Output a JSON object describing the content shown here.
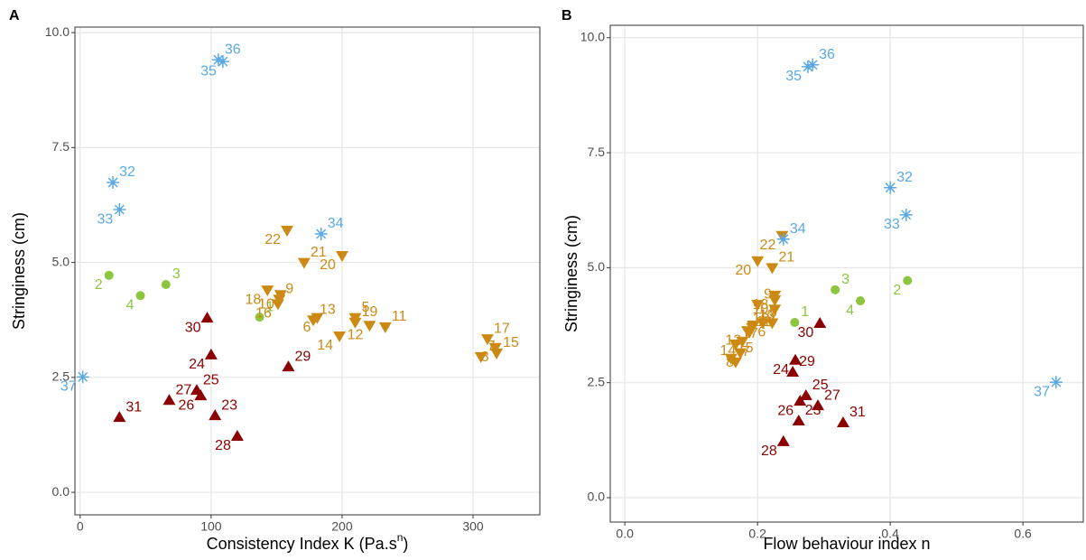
{
  "chart_data": [
    {
      "type": "scatter",
      "panel": "A",
      "ylabel": "Stringiness (cm)",
      "xlabel": "Consistency Index K (Pa.s",
      "xlabel_superscript": "n",
      "xlabel_suffix": ")",
      "xlim": [
        -4,
        351
      ],
      "ylim": [
        -0.49,
        10.12
      ],
      "xticks": [
        0,
        100,
        200,
        300
      ],
      "yticks": [
        {
          "value": 0,
          "label": "0.0"
        },
        {
          "value": 2.5,
          "label": "2.5"
        },
        {
          "value": 5,
          "label": "5.0"
        },
        {
          "value": 7.5,
          "label": "7.5"
        },
        {
          "value": 10,
          "label": "10.0"
        }
      ],
      "grid": true,
      "series": [
        {
          "color": "#8cc63f",
          "marker": "circle",
          "labels": [
            "1",
            "2",
            "3",
            "4"
          ],
          "x": [
            137,
            22,
            65.5,
            46
          ],
          "y": [
            3.81,
            4.72,
            4.52,
            4.28
          ]
        },
        {
          "color": "#cc8a14",
          "marker": "triangle-down",
          "labels": [
            "5",
            "6",
            "7",
            "8",
            "9",
            "10",
            "11",
            "12",
            "13",
            "14",
            "15",
            "16",
            "17",
            "18",
            "19",
            "20",
            "21",
            "22"
          ],
          "x": [
            210,
            181,
            306,
            317,
            152,
            153,
            233,
            221,
            178,
            198,
            318,
            151,
            311,
            143,
            210,
            200,
            171,
            158
          ],
          "y": [
            3.8,
            3.8,
            2.95,
            3.15,
            4.2,
            4.3,
            3.6,
            3.63,
            3.75,
            3.4,
            3.03,
            4.1,
            3.34,
            4.4,
            3.7,
            5.15,
            5.0,
            5.7
          ]
        },
        {
          "color": "#8b0000",
          "marker": "triangle-up",
          "labels": [
            "23",
            "24",
            "25",
            "26",
            "27",
            "28",
            "29",
            "30",
            "31"
          ],
          "x": [
            103,
            100,
            89,
            92,
            68,
            120,
            159,
            97,
            30
          ],
          "y": [
            1.67,
            2.99,
            2.22,
            2.1,
            2.0,
            1.22,
            2.73,
            3.79,
            1.63
          ]
        },
        {
          "color": "#5aa9e6",
          "marker": "asterisk",
          "labels": [
            "32",
            "33",
            "34",
            "35",
            "36",
            "37"
          ],
          "x": [
            25,
            30,
            184,
            109,
            105.5,
            2
          ],
          "y": [
            6.74,
            6.15,
            5.62,
            9.37,
            9.41,
            2.51
          ]
        }
      ]
    },
    {
      "type": "scatter",
      "panel": "B",
      "ylabel": "Stringiness (cm)",
      "xlabel": "Flow behaviour index n",
      "xlim": [
        -0.022,
        0.691
      ],
      "ylim": [
        -0.53,
        10.27
      ],
      "xticks": [
        {
          "value": 0,
          "label": "0.0"
        },
        {
          "value": 0.2,
          "label": "0.2"
        },
        {
          "value": 0.4,
          "label": "0.4"
        },
        {
          "value": 0.6,
          "label": "0.6"
        }
      ],
      "yticks": [
        {
          "value": 0,
          "label": "0.0"
        },
        {
          "value": 2.5,
          "label": "2.5"
        },
        {
          "value": 5,
          "label": "5.0"
        },
        {
          "value": 7.5,
          "label": "7.5"
        },
        {
          "value": 10,
          "label": "10.0"
        }
      ],
      "grid": true,
      "series": [
        {
          "color": "#8cc63f",
          "marker": "circle",
          "labels": [
            "1",
            "2",
            "3",
            "4"
          ],
          "x": [
            0.256,
            0.426,
            0.317,
            0.355
          ],
          "y": [
            3.81,
            4.72,
            4.52,
            4.28
          ]
        },
        {
          "color": "#cc8a14",
          "marker": "triangle-down",
          "labels": [
            "5",
            "6",
            "7",
            "8",
            "9",
            "10",
            "11",
            "12",
            "13",
            "14",
            "15",
            "16",
            "17",
            "18",
            "19",
            "20",
            "21",
            "22"
          ],
          "x": [
            0.208,
            0.222,
            0.167,
            0.174,
            0.2,
            0.226,
            0.188,
            0.185,
            0.193,
            0.177,
            0.16,
            0.226,
            0.167,
            0.226,
            0.192,
            0.2,
            0.222,
            0.237
          ],
          "y": [
            3.8,
            3.8,
            2.95,
            3.15,
            4.2,
            4.3,
            3.6,
            3.63,
            3.75,
            3.4,
            3.03,
            4.1,
            3.34,
            4.4,
            3.7,
            5.15,
            5.0,
            5.7
          ]
        },
        {
          "color": "#8b0000",
          "marker": "triangle-up",
          "labels": [
            "23",
            "24",
            "25",
            "26",
            "27",
            "28",
            "29",
            "30",
            "31"
          ],
          "x": [
            0.262,
            0.257,
            0.273,
            0.264,
            0.291,
            0.239,
            0.253,
            0.294,
            0.329
          ],
          "y": [
            1.67,
            2.99,
            2.22,
            2.1,
            2.0,
            1.22,
            2.73,
            3.79,
            1.63
          ]
        },
        {
          "color": "#5aa9e6",
          "marker": "asterisk",
          "labels": [
            "32",
            "33",
            "34",
            "35",
            "36",
            "37"
          ],
          "x": [
            0.4,
            0.424,
            0.239,
            0.276,
            0.283,
            0.65
          ],
          "y": [
            6.74,
            6.15,
            5.62,
            9.37,
            9.41,
            2.51
          ]
        }
      ]
    }
  ]
}
